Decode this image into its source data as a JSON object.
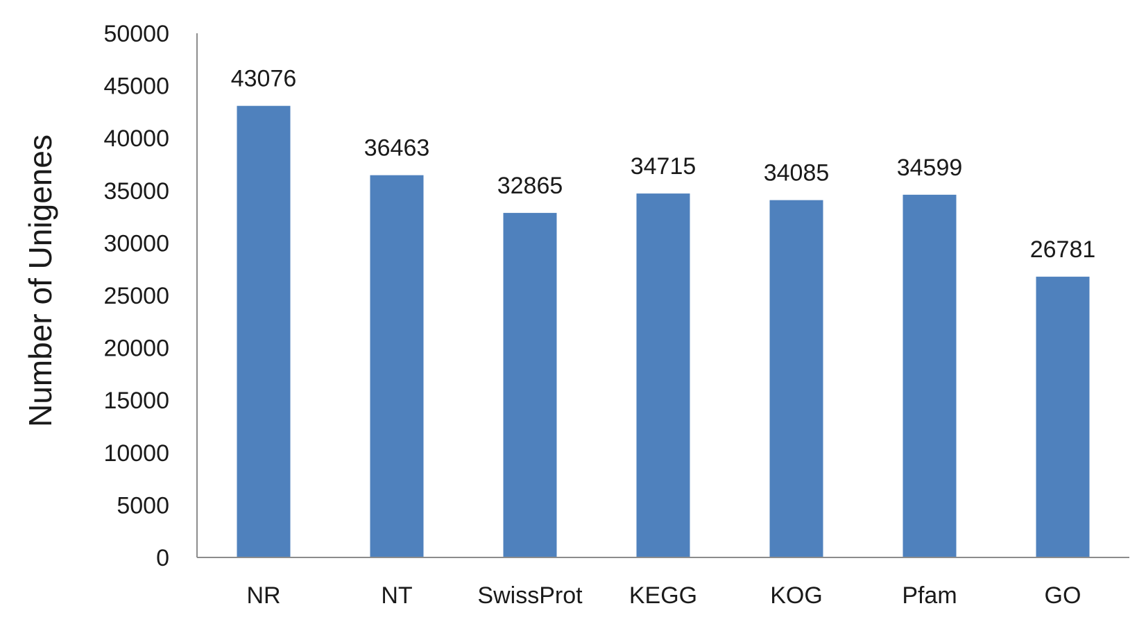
{
  "chart_data": {
    "type": "bar",
    "categories": [
      "NR",
      "NT",
      "SwissProt",
      "KEGG",
      "KOG",
      "Pfam",
      "GO"
    ],
    "values": [
      43076,
      36463,
      32865,
      34715,
      34085,
      34599,
      26781
    ],
    "data_labels": [
      "43076",
      "36463",
      "32865",
      "34715",
      "34085",
      "34599",
      "26781"
    ],
    "title": "",
    "xlabel": "",
    "ylabel": "Number of Unigenes",
    "ylim": [
      0,
      50000
    ],
    "yticks": [
      0,
      5000,
      10000,
      15000,
      20000,
      25000,
      30000,
      35000,
      40000,
      45000,
      50000
    ],
    "ytick_labels": [
      "0",
      "5000",
      "10000",
      "15000",
      "20000",
      "25000",
      "30000",
      "35000",
      "40000",
      "45000",
      "50000"
    ],
    "grid": false,
    "legend": "none",
    "bar_color": "#4f81bd"
  }
}
